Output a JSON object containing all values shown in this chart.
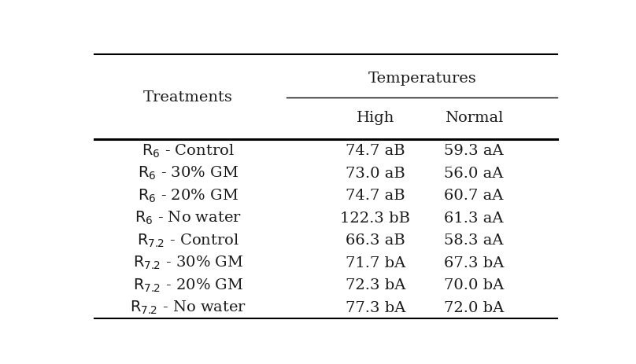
{
  "title_group": "Temperatures",
  "col_headers": [
    "High",
    "Normal"
  ],
  "row_labels_parts": [
    {
      "base": "R",
      "sub": "6",
      "rest": " - Control"
    },
    {
      "base": "R",
      "sub": "6",
      "rest": " - 30% GM"
    },
    {
      "base": "R",
      "sub": "6",
      "rest": " - 20% GM"
    },
    {
      "base": "R",
      "sub": "6",
      "rest": " - No water"
    },
    {
      "base": "R",
      "sub": "7.2",
      "rest": " - Control"
    },
    {
      "base": "R",
      "sub": "7.2",
      "rest": " - 30% GM"
    },
    {
      "base": "R",
      "sub": "7.2",
      "rest": " - 20% GM"
    },
    {
      "base": "R",
      "sub": "7.2",
      "rest": " - No water"
    }
  ],
  "data": [
    [
      "74.7 aB",
      "59.3 aA"
    ],
    [
      "73.0 aB",
      "56.0 aA"
    ],
    [
      "74.7 aB",
      "60.7 aA"
    ],
    [
      "122.3 bB",
      "61.3 aA"
    ],
    [
      "66.3 aB",
      "58.3 aA"
    ],
    [
      "71.7 bA",
      "67.3 bA"
    ],
    [
      "72.3 bA",
      "70.0 bA"
    ],
    [
      "77.3 bA",
      "72.0 bA"
    ]
  ],
  "bg_color": "#ffffff",
  "text_color": "#1a1a1a",
  "font_size": 14,
  "header_font_size": 14,
  "treatments_label": "Treatments",
  "line_color": "#000000",
  "figsize": [
    8.08,
    4.64
  ],
  "dpi": 100
}
